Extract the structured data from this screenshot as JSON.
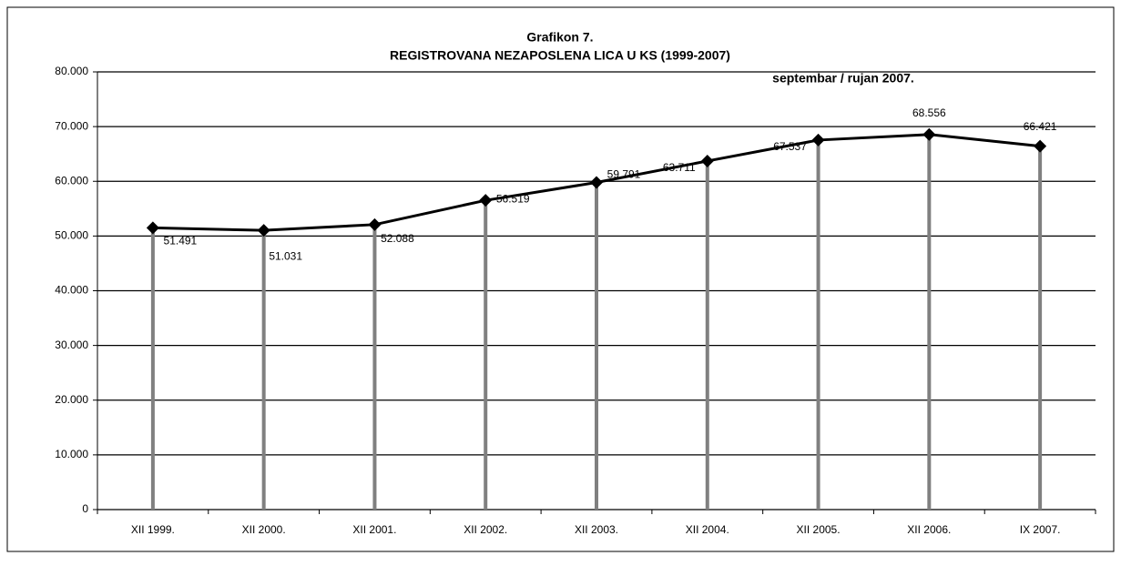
{
  "chart_data": {
    "type": "line",
    "title": "Grafikon 7.",
    "subtitle": "REGISTROVANA NEZAPOSLENA LICA U KS  (1999-2007)",
    "annotation": "septembar / rujan 2007.",
    "categories": [
      "XII 1999.",
      "XII 2000.",
      "XII 2001.",
      "XII 2002.",
      "XII 2003.",
      "XII  2004.",
      "XII 2005.",
      "XII 2006.",
      "IX 2007."
    ],
    "values": [
      51491,
      51031,
      52088,
      56519,
      59791,
      63711,
      67537,
      68556,
      66421
    ],
    "value_labels": [
      "51.491",
      "51.031",
      "52.088",
      "56.519",
      "59.791",
      "63.711",
      "67.537",
      "68.556",
      "66.421"
    ],
    "color": "#000000",
    "drop_line_color": "#808080",
    "ylim": [
      0,
      80000
    ],
    "yticks": [
      0,
      {
        "value": 10000,
        "label": "10.000"
      },
      {
        "value": 20000,
        "label": "20.000"
      },
      {
        "value": 30000,
        "label": "30.000"
      },
      {
        "value": 40000,
        "label": "40.000"
      },
      {
        "value": 50000,
        "label": "50.000"
      },
      {
        "value": 60000,
        "label": "60.000"
      },
      {
        "value": 70000,
        "label": "70.000"
      },
      {
        "value": 80000,
        "label": "80.000"
      }
    ],
    "grid": true
  }
}
